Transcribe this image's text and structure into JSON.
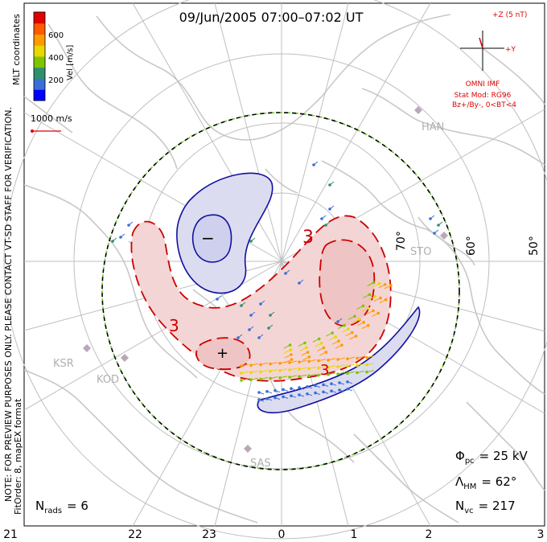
{
  "title": "09/Jun/2005 07:00–07:02 UT",
  "side_note": "NOTE: FOR PREVIEW PURPOSES ONLY. PLEASE CONTACT VT-SD STAFF FOR VERIFICATION.",
  "fit_order": "FitOrder: 8, mapEX format",
  "colorbar": {
    "title": "Vel [m/s]",
    "coords_label": "MLT coordinates",
    "ticks": [
      "600",
      "400",
      "200"
    ],
    "colors": [
      "#0000ff",
      "#3a6fd8",
      "#2f8f6f",
      "#7fc400",
      "#e6d800",
      "#ff9a00",
      "#ff5a00",
      "#e00000"
    ]
  },
  "scale": {
    "label": "1000 m/s",
    "color": "#e00000"
  },
  "imf": {
    "label_top": "+Z (5 nT)",
    "label_right": "+Y",
    "title": "OMNI IMF",
    "stat_mod": "Stat Mod: RG96",
    "condition": "Bz+/By-, 0<BT<4",
    "color": "#e00000"
  },
  "contours": {
    "positive_label": "3",
    "negative_label": "−",
    "plus_label": "+",
    "positive_color": "#cc0000",
    "negative_color": "#0000aa"
  },
  "stations": [
    "HAN",
    "STO",
    "KSR",
    "KOD",
    "SAS"
  ],
  "latitude_labels": [
    "70°",
    "60°",
    "50°"
  ],
  "mlt_labels": [
    "21",
    "22",
    "23",
    "0",
    "1",
    "2",
    "3"
  ],
  "stats": {
    "phi_symbol": "Φ",
    "phi_sub": "pc",
    "phi_value": "= 25 kV",
    "lambda_symbol": "Λ",
    "lambda_sub": "HM",
    "lambda_value": "= 62°",
    "nvc_symbol": "N",
    "nvc_sub": "vc",
    "nvc_value": "= 217",
    "nrads_symbol": "N",
    "nrads_sub": "rads",
    "nrads_value": "= 6"
  }
}
